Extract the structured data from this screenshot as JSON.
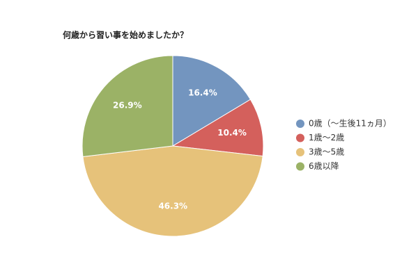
{
  "chart_data": {
    "type": "pie",
    "title": "何歳から習い事を始めましたか？",
    "categories": [
      "0歳（～生後11ヵ月）",
      "1歳～2歳",
      "3歳～5歳",
      "6歳以降"
    ],
    "values": [
      16.4,
      10.4,
      46.3,
      26.9
    ],
    "value_labels": [
      "16.4%",
      "10.4%",
      "46.3%",
      "26.9%"
    ],
    "colors": [
      "#7395bf",
      "#d4605c",
      "#e6c27a",
      "#9bb266"
    ]
  }
}
